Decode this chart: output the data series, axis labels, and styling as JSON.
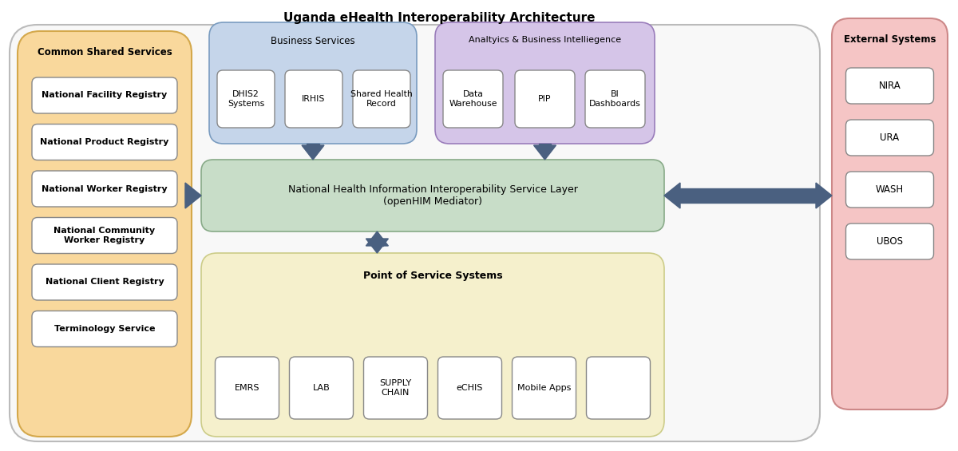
{
  "title": "Uganda eHealth Interoperability Architecture",
  "bg_color": "#ffffff",
  "outer_box_color": "#dddddd",
  "common_services_bg": "#f9d89c",
  "common_services_border": "#d4a84b",
  "common_services_label": "Common Shared Services",
  "common_services_items": [
    "National Facility Registry",
    "National Product Registry",
    "National Worker Registry",
    "National Community\nWorker Registry",
    "National Client Registry",
    "Terminology Service"
  ],
  "business_services_bg": "#c5d5ea",
  "business_services_border": "#7a9cc0",
  "business_services_label": "Business Services",
  "business_services_items": [
    "DHIS2\nSystems",
    "IRHIS",
    "Shared Health\nRecord"
  ],
  "analytics_bg": "#d5c5e8",
  "analytics_border": "#9a7dbb",
  "analytics_label": "Analtyics & Business Intelliegence",
  "analytics_items": [
    "Data\nWarehouse",
    "PIP",
    "BI\nDashboards"
  ],
  "interop_bg": "#c8ddc8",
  "interop_border": "#88aa88",
  "interop_label": "National Health Information Interoperability Service Layer\n(openHIM Mediator)",
  "pos_bg": "#f5f0cc",
  "pos_border": "#cccc88",
  "pos_label": "Point of Service Systems",
  "pos_items": [
    "EMRS",
    "LAB",
    "SUPPLY\nCHAIN",
    "eCHIS",
    "Mobile Apps",
    ""
  ],
  "external_bg": "#f5c5c5",
  "external_border": "#cc8888",
  "external_label": "External Systems",
  "external_items": [
    "NIRA",
    "URA",
    "WASH",
    "UBOS"
  ],
  "arrow_color": "#4a6080",
  "white_box_color": "#ffffff",
  "item_box_border": "#aaaaaa",
  "white_box_border_dark": "#888888"
}
